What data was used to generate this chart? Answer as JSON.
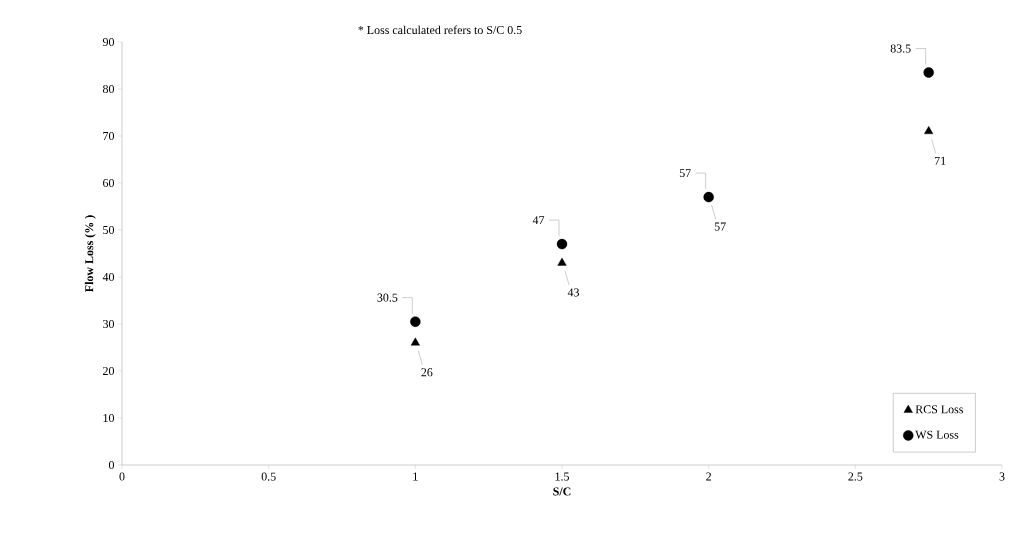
{
  "chart_data": {
    "type": "scatter",
    "xlabel": "S/C",
    "ylabel": "Flow Loss (% )",
    "annotations": [
      "* Loss calculated refers to S/C 0.5"
    ],
    "xlim": [
      0,
      3
    ],
    "ylim": [
      0,
      90
    ],
    "xticks": [
      0,
      0.5,
      1,
      1.5,
      2,
      2.5,
      3
    ],
    "yticks": [
      0,
      10,
      20,
      30,
      40,
      50,
      60,
      70,
      80,
      90
    ],
    "grid": false,
    "legend": "bottom right",
    "data_labels": true,
    "series": [
      {
        "name": "RCS Loss",
        "color": "#000000",
        "marker": "triangle",
        "x": [
          1,
          1.5,
          2,
          2.75
        ],
        "values": [
          26,
          43,
          57,
          71
        ]
      },
      {
        "name": "WS Loss",
        "color": "#000000",
        "marker": "circle",
        "x": [
          1,
          1.5,
          2,
          2.75
        ],
        "values": [
          30.5,
          47,
          57,
          83.5
        ]
      }
    ]
  }
}
